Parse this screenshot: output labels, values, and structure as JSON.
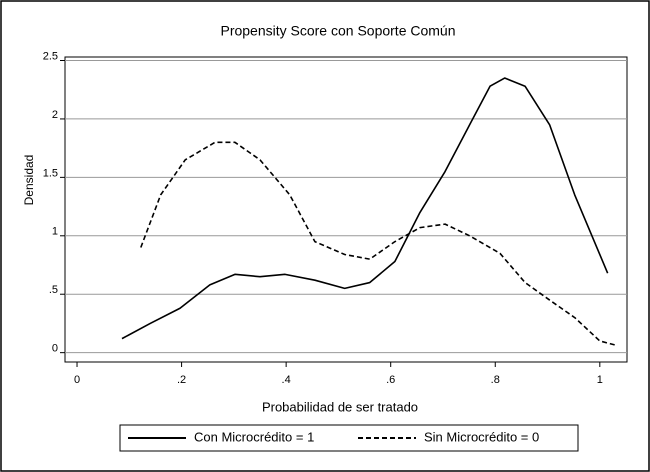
{
  "chart_data": {
    "type": "line",
    "title": "Propensity Score con Soporte Común",
    "x_label": "Probabilidad de ser tratado",
    "y_label": "Densidad",
    "xlim": [
      -0.023,
      1.052
    ],
    "ylim": [
      -0.08,
      2.53
    ],
    "xticks": [
      0,
      {
        "value": 0.2,
        "label": ".2"
      },
      {
        "value": 0.4,
        "label": ".4"
      },
      {
        "value": 0.6,
        "label": ".6"
      },
      {
        "value": 0.8,
        "label": ".8"
      },
      1
    ],
    "yticks": [
      0,
      {
        "value": 0.5,
        "label": ".5"
      },
      1,
      1.5,
      2,
      2.5
    ],
    "grid": true,
    "legend": "bottom",
    "series": [
      {
        "name": "Con Microcrédito = 1",
        "color": "#000000",
        "dash": "solid",
        "x": [
          0.086,
          0.14,
          0.197,
          0.254,
          0.302,
          0.35,
          0.398,
          0.455,
          0.512,
          0.56,
          0.608,
          0.656,
          0.704,
          0.751,
          0.79,
          0.818,
          0.857,
          0.904,
          0.952,
          1.015
        ],
        "values": [
          0.12,
          0.25,
          0.38,
          0.58,
          0.67,
          0.65,
          0.67,
          0.62,
          0.55,
          0.6,
          0.78,
          1.2,
          1.55,
          1.95,
          2.28,
          2.35,
          2.28,
          1.95,
          1.35,
          0.68
        ]
      },
      {
        "name": "Sin Microcrédito = 0",
        "color": "#000000",
        "dash": "dashed",
        "x": [
          0.122,
          0.16,
          0.207,
          0.264,
          0.302,
          0.35,
          0.407,
          0.455,
          0.512,
          0.56,
          0.608,
          0.656,
          0.704,
          0.751,
          0.809,
          0.857,
          0.904,
          0.952,
          1.0,
          1.034
        ],
        "values": [
          0.9,
          1.35,
          1.65,
          1.8,
          1.8,
          1.65,
          1.35,
          0.95,
          0.84,
          0.8,
          0.95,
          1.07,
          1.1,
          1.0,
          0.85,
          0.6,
          0.45,
          0.3,
          0.1,
          0.06
        ]
      }
    ]
  }
}
